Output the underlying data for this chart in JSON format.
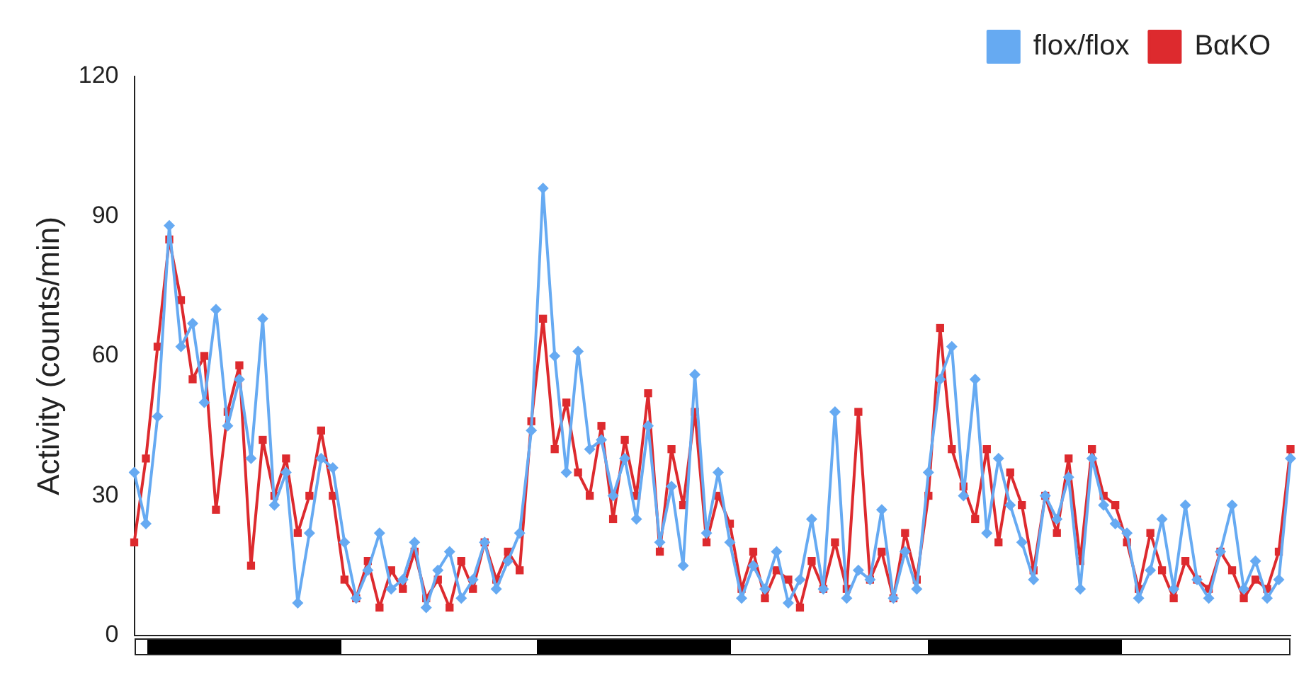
{
  "chart_data": {
    "type": "line",
    "ylabel": "Activity (counts/min)",
    "categories": [
      null,
      null,
      null,
      null,
      null,
      null,
      null,
      null,
      null,
      null,
      null,
      null,
      null,
      null,
      null,
      null,
      null,
      null,
      null,
      null,
      null,
      null,
      null,
      null,
      null,
      null,
      null,
      null,
      null,
      null,
      null,
      null,
      null,
      null,
      null,
      null,
      null,
      null,
      null,
      null,
      null,
      null,
      null,
      null,
      null,
      null,
      null,
      null,
      null,
      null,
      null,
      null,
      null,
      null,
      null,
      null,
      null,
      null,
      null,
      null,
      null,
      null,
      null,
      null,
      null,
      null,
      null,
      null,
      null,
      null,
      null,
      null,
      null,
      null,
      null,
      null,
      null,
      null,
      null,
      null,
      null,
      null,
      null,
      null,
      null,
      null,
      null,
      null,
      null,
      null,
      null,
      null,
      null,
      null,
      null,
      null,
      null,
      null,
      null,
      null
    ],
    "series": [
      {
        "name": "flox/flox",
        "color": "#66aaf2",
        "marker": "diamond",
        "values": [
          35,
          24,
          47,
          88,
          62,
          67,
          50,
          70,
          45,
          55,
          38,
          68,
          28,
          35,
          7,
          22,
          38,
          36,
          20,
          8,
          14,
          22,
          10,
          12,
          20,
          6,
          14,
          18,
          8,
          12,
          20,
          10,
          16,
          22,
          44,
          96,
          60,
          35,
          61,
          40,
          42,
          30,
          38,
          25,
          45,
          20,
          32,
          15,
          56,
          22,
          35,
          20,
          8,
          15,
          10,
          18,
          7,
          12,
          25,
          10,
          48,
          8,
          14,
          12,
          27,
          8,
          18,
          10,
          35,
          55,
          62,
          30,
          55,
          22,
          38,
          28,
          20,
          12,
          30,
          25,
          34,
          10,
          38,
          28,
          24,
          22,
          8,
          14,
          25,
          10,
          28,
          12,
          8,
          18,
          28,
          10,
          16,
          8,
          12,
          38
        ]
      },
      {
        "name": "BαKO",
        "color": "#dd2a2e",
        "marker": "square",
        "values": [
          20,
          38,
          62,
          85,
          72,
          55,
          60,
          27,
          48,
          58,
          15,
          42,
          30,
          38,
          22,
          30,
          44,
          30,
          12,
          8,
          16,
          6,
          14,
          10,
          18,
          8,
          12,
          6,
          16,
          10,
          20,
          12,
          18,
          14,
          46,
          68,
          40,
          50,
          35,
          30,
          45,
          25,
          42,
          30,
          52,
          18,
          40,
          28,
          48,
          20,
          30,
          24,
          10,
          18,
          8,
          14,
          12,
          6,
          16,
          10,
          20,
          10,
          48,
          12,
          18,
          8,
          22,
          12,
          30,
          66,
          40,
          32,
          25,
          40,
          20,
          35,
          28,
          14,
          30,
          22,
          38,
          16,
          40,
          30,
          28,
          20,
          10,
          22,
          14,
          8,
          16,
          12,
          10,
          18,
          14,
          8,
          12,
          10,
          18,
          40
        ]
      }
    ],
    "ylim": [
      0,
      120
    ],
    "yticks": [
      0,
      30,
      60,
      90,
      120
    ],
    "grid": false,
    "legend": "top right",
    "tick_labels": "y",
    "line_style": "solid"
  }
}
